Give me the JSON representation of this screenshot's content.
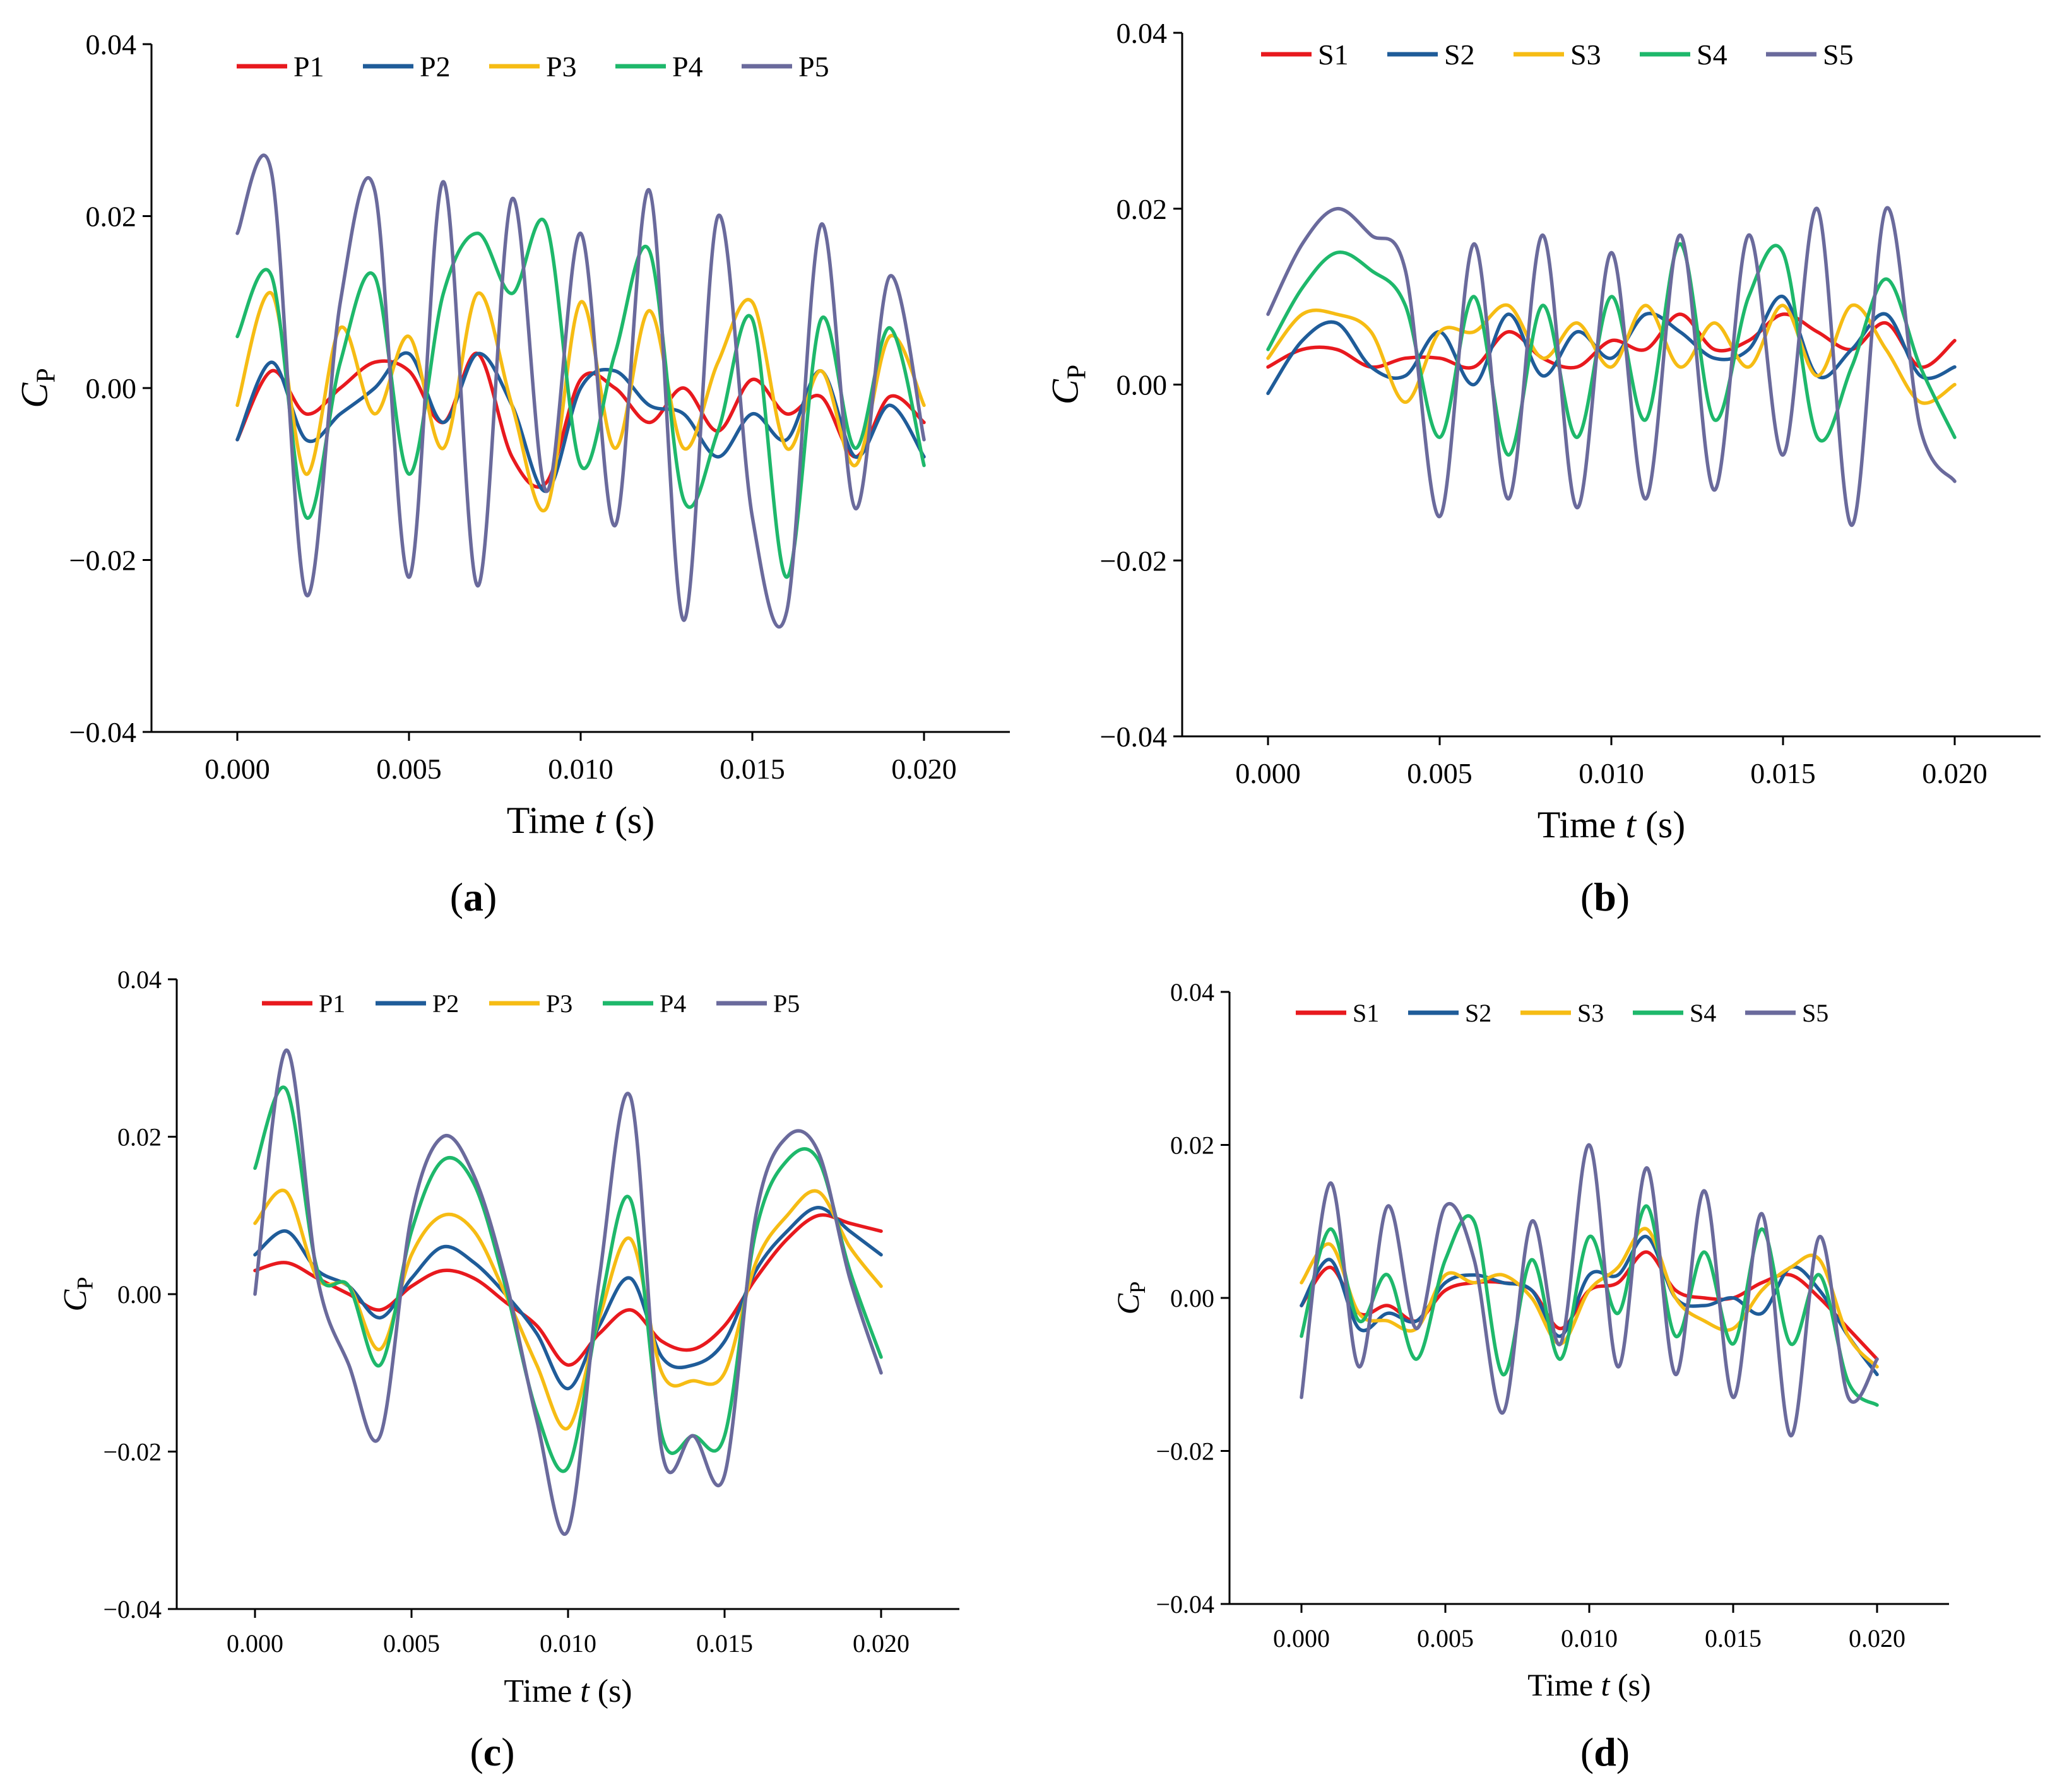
{
  "figure": {
    "captions": [
      "(a)",
      "(b)",
      "(c)",
      "(d)"
    ],
    "caption_letters": [
      "a",
      "b",
      "c",
      "d"
    ]
  },
  "chart_data": [
    {
      "panel": "a",
      "type": "line",
      "xlabel_prefix": "Time ",
      "xlabel_var": "t",
      "xlabel_suffix": " (s)",
      "ylabel_main": "C",
      "ylabel_sub": "P",
      "xlim": [
        -0.0025,
        0.0225
      ],
      "ylim": [
        -0.04,
        0.04
      ],
      "xticks": [
        0.0,
        0.005,
        0.01,
        0.015,
        0.02
      ],
      "xtick_labels": [
        "0.000",
        "0.005",
        "0.010",
        "0.015",
        "0.020"
      ],
      "yticks": [
        -0.04,
        -0.02,
        0.0,
        0.02,
        0.04
      ],
      "ytick_labels": [
        "−0.04",
        "−0.02",
        "0.00",
        "0.02",
        "0.04"
      ],
      "legend_position": "top",
      "x": [
        0.0,
        0.001,
        0.002,
        0.003,
        0.004,
        0.005,
        0.006,
        0.007,
        0.008,
        0.009,
        0.01,
        0.011,
        0.012,
        0.013,
        0.014,
        0.015,
        0.016,
        0.017,
        0.018,
        0.019,
        0.02
      ],
      "series": [
        {
          "name": "P1",
          "color": "#e8191e",
          "values": [
            -0.006,
            0.002,
            -0.003,
            0.0,
            0.003,
            0.002,
            -0.004,
            0.004,
            -0.008,
            -0.011,
            0.001,
            0.0,
            -0.004,
            0.0,
            -0.005,
            0.001,
            -0.003,
            -0.001,
            -0.008,
            -0.001,
            -0.004
          ]
        },
        {
          "name": "P2",
          "color": "#1f5c99",
          "values": [
            -0.006,
            0.003,
            -0.006,
            -0.003,
            0.0,
            0.004,
            -0.004,
            0.004,
            -0.002,
            -0.012,
            0.0,
            0.002,
            -0.002,
            -0.003,
            -0.008,
            -0.003,
            -0.006,
            0.002,
            -0.008,
            -0.002,
            -0.008
          ]
        },
        {
          "name": "P3",
          "color": "#f6bc14",
          "values": [
            -0.002,
            0.011,
            -0.01,
            0.007,
            -0.003,
            0.006,
            -0.007,
            0.011,
            -0.002,
            -0.014,
            0.01,
            -0.007,
            0.009,
            -0.007,
            0.003,
            0.01,
            -0.007,
            0.002,
            -0.009,
            0.006,
            -0.002
          ]
        },
        {
          "name": "P4",
          "color": "#1eb86b",
          "values": [
            0.006,
            0.013,
            -0.015,
            0.003,
            0.013,
            -0.01,
            0.011,
            0.018,
            0.011,
            0.019,
            -0.009,
            0.004,
            0.016,
            -0.013,
            -0.005,
            0.008,
            -0.022,
            0.008,
            -0.007,
            0.007,
            -0.009
          ]
        },
        {
          "name": "P5",
          "color": "#6a6a9c",
          "values": [
            0.018,
            0.025,
            -0.024,
            0.01,
            0.023,
            -0.022,
            0.024,
            -0.023,
            0.022,
            -0.012,
            0.018,
            -0.016,
            0.023,
            -0.027,
            0.02,
            -0.015,
            -0.026,
            0.019,
            -0.014,
            0.013,
            -0.006
          ]
        }
      ]
    },
    {
      "panel": "b",
      "type": "line",
      "xlabel_prefix": "Time ",
      "xlabel_var": "t",
      "xlabel_suffix": " (s)",
      "ylabel_main": "C",
      "ylabel_sub": "P",
      "xlim": [
        -0.0025,
        0.0225
      ],
      "ylim": [
        -0.04,
        0.04
      ],
      "xticks": [
        0.0,
        0.005,
        0.01,
        0.015,
        0.02
      ],
      "xtick_labels": [
        "0.000",
        "0.005",
        "0.010",
        "0.015",
        "0.020"
      ],
      "yticks": [
        -0.04,
        -0.02,
        0.0,
        0.02,
        0.04
      ],
      "ytick_labels": [
        "−0.04",
        "−0.02",
        "0.00",
        "0.02",
        "0.04"
      ],
      "legend_position": "top",
      "x": [
        0.0,
        0.001,
        0.002,
        0.003,
        0.004,
        0.005,
        0.006,
        0.007,
        0.008,
        0.009,
        0.01,
        0.011,
        0.012,
        0.013,
        0.014,
        0.015,
        0.016,
        0.017,
        0.018,
        0.019,
        0.02
      ],
      "series": [
        {
          "name": "S1",
          "color": "#e8191e",
          "values": [
            0.002,
            0.004,
            0.004,
            0.002,
            0.003,
            0.003,
            0.002,
            0.006,
            0.003,
            0.002,
            0.005,
            0.004,
            0.008,
            0.004,
            0.005,
            0.008,
            0.006,
            0.004,
            0.007,
            0.002,
            0.005
          ]
        },
        {
          "name": "S2",
          "color": "#1f5c99",
          "values": [
            -0.001,
            0.005,
            0.007,
            0.002,
            0.001,
            0.006,
            0.0,
            0.008,
            0.001,
            0.006,
            0.003,
            0.008,
            0.006,
            0.003,
            0.004,
            0.01,
            0.001,
            0.004,
            0.008,
            0.001,
            0.002
          ]
        },
        {
          "name": "S3",
          "color": "#f6bc14",
          "values": [
            0.003,
            0.008,
            0.008,
            0.006,
            -0.002,
            0.006,
            0.006,
            0.009,
            0.003,
            0.007,
            0.002,
            0.009,
            0.002,
            0.007,
            0.002,
            0.009,
            0.001,
            0.009,
            0.004,
            -0.002,
            0.0
          ]
        },
        {
          "name": "S4",
          "color": "#1eb86b",
          "values": [
            0.004,
            0.011,
            0.015,
            0.013,
            0.009,
            -0.006,
            0.01,
            -0.008,
            0.009,
            -0.006,
            0.01,
            -0.004,
            0.016,
            -0.004,
            0.01,
            0.015,
            -0.006,
            0.002,
            0.012,
            0.002,
            -0.006
          ]
        },
        {
          "name": "S5",
          "color": "#6a6a9c",
          "values": [
            0.008,
            0.016,
            0.02,
            0.017,
            0.013,
            -0.015,
            0.016,
            -0.013,
            0.017,
            -0.014,
            0.015,
            -0.013,
            0.017,
            -0.012,
            0.017,
            -0.008,
            0.02,
            -0.016,
            0.02,
            -0.005,
            -0.011
          ]
        }
      ]
    },
    {
      "panel": "c",
      "type": "line",
      "xlabel_prefix": "Time ",
      "xlabel_var": "t",
      "xlabel_suffix": " (s)",
      "ylabel_main": "C",
      "ylabel_sub": "P",
      "xlim": [
        -0.0025,
        0.0225
      ],
      "ylim": [
        -0.04,
        0.04
      ],
      "xticks": [
        0.0,
        0.005,
        0.01,
        0.015,
        0.02
      ],
      "xtick_labels": [
        "0.000",
        "0.005",
        "0.010",
        "0.015",
        "0.020"
      ],
      "yticks": [
        -0.04,
        -0.02,
        0.0,
        0.02,
        0.04
      ],
      "ytick_labels": [
        "−0.04",
        "−0.02",
        "0.00",
        "0.02",
        "0.04"
      ],
      "legend_position": "top",
      "x": [
        0.0,
        0.001,
        0.002,
        0.003,
        0.004,
        0.005,
        0.006,
        0.007,
        0.008,
        0.009,
        0.01,
        0.011,
        0.012,
        0.013,
        0.014,
        0.015,
        0.016,
        0.017,
        0.018,
        0.019,
        0.02
      ],
      "series": [
        {
          "name": "P1",
          "color": "#e8191e",
          "values": [
            0.003,
            0.004,
            0.002,
            0.0,
            -0.002,
            0.001,
            0.003,
            0.002,
            -0.001,
            -0.004,
            -0.009,
            -0.005,
            -0.002,
            -0.006,
            -0.007,
            -0.004,
            0.002,
            0.007,
            0.01,
            0.009,
            0.008
          ]
        },
        {
          "name": "P2",
          "color": "#1f5c99",
          "values": [
            0.005,
            0.008,
            0.003,
            0.001,
            -0.003,
            0.002,
            0.006,
            0.004,
            0.0,
            -0.005,
            -0.012,
            -0.004,
            0.002,
            -0.008,
            -0.009,
            -0.006,
            0.003,
            0.008,
            0.011,
            0.008,
            0.005
          ]
        },
        {
          "name": "P3",
          "color": "#f6bc14",
          "values": [
            0.009,
            0.013,
            0.002,
            0.001,
            -0.007,
            0.005,
            0.01,
            0.008,
            0.0,
            -0.009,
            -0.017,
            -0.003,
            0.007,
            -0.01,
            -0.011,
            -0.01,
            0.004,
            0.01,
            0.013,
            0.006,
            0.001
          ]
        },
        {
          "name": "P4",
          "color": "#1eb86b",
          "values": [
            0.016,
            0.026,
            0.003,
            0.001,
            -0.009,
            0.008,
            0.017,
            0.014,
            0.001,
            -0.015,
            -0.022,
            -0.002,
            0.012,
            -0.018,
            -0.018,
            -0.018,
            0.008,
            0.017,
            0.017,
            0.003,
            -0.008
          ]
        },
        {
          "name": "P5",
          "color": "#6a6a9c",
          "values": [
            0.0,
            0.031,
            0.002,
            -0.009,
            -0.018,
            0.01,
            0.02,
            0.015,
            0.002,
            -0.016,
            -0.03,
            0.002,
            0.025,
            -0.02,
            -0.018,
            -0.023,
            0.01,
            0.02,
            0.018,
            0.002,
            -0.01
          ]
        }
      ]
    },
    {
      "panel": "d",
      "type": "line",
      "xlabel_prefix": "Time ",
      "xlabel_var": "t",
      "xlabel_suffix": " (s)",
      "ylabel_main": "C",
      "ylabel_sub": "P",
      "xlim": [
        -0.0025,
        0.0225
      ],
      "ylim": [
        -0.04,
        0.04
      ],
      "xticks": [
        0.0,
        0.005,
        0.01,
        0.015,
        0.02
      ],
      "xtick_labels": [
        "0.000",
        "0.005",
        "0.010",
        "0.015",
        "0.020"
      ],
      "yticks": [
        -0.04,
        -0.02,
        0.0,
        0.02,
        0.04
      ],
      "ytick_labels": [
        "−0.04",
        "−0.02",
        "0.00",
        "0.02",
        "0.04"
      ],
      "legend_position": "top",
      "x": [
        0.0,
        0.001,
        0.002,
        0.003,
        0.004,
        0.005,
        0.006,
        0.007,
        0.008,
        0.009,
        0.01,
        0.011,
        0.012,
        0.013,
        0.014,
        0.015,
        0.016,
        0.017,
        0.018,
        0.019,
        0.02
      ],
      "series": [
        {
          "name": "S1",
          "color": "#e8191e",
          "values": [
            -0.001,
            0.004,
            -0.002,
            -0.001,
            -0.003,
            0.001,
            0.002,
            0.002,
            0.001,
            -0.004,
            0.001,
            0.002,
            0.006,
            0.001,
            0.0,
            0.0,
            0.002,
            0.003,
            0.0,
            -0.004,
            -0.008
          ]
        },
        {
          "name": "S2",
          "color": "#1f5c99",
          "values": [
            -0.001,
            0.005,
            -0.004,
            -0.002,
            -0.003,
            0.002,
            0.003,
            0.002,
            0.001,
            -0.005,
            0.003,
            0.003,
            0.008,
            0.0,
            -0.001,
            0.0,
            -0.002,
            0.004,
            0.001,
            -0.005,
            -0.01
          ]
        },
        {
          "name": "S3",
          "color": "#f6bc14",
          "values": [
            0.002,
            0.007,
            -0.002,
            -0.003,
            -0.004,
            0.003,
            0.002,
            0.003,
            0.0,
            -0.006,
            0.001,
            0.004,
            0.009,
            0.0,
            -0.003,
            -0.004,
            0.001,
            0.004,
            0.005,
            -0.005,
            -0.009
          ]
        },
        {
          "name": "S4",
          "color": "#1eb86b",
          "values": [
            -0.005,
            0.009,
            -0.003,
            0.003,
            -0.008,
            0.005,
            0.01,
            -0.01,
            0.005,
            -0.008,
            0.008,
            -0.002,
            0.012,
            -0.005,
            0.006,
            -0.006,
            0.009,
            -0.006,
            0.003,
            -0.011,
            -0.014
          ]
        },
        {
          "name": "S5",
          "color": "#6a6a9c",
          "values": [
            -0.013,
            0.015,
            -0.009,
            0.012,
            -0.004,
            0.012,
            0.005,
            -0.015,
            0.01,
            -0.006,
            0.02,
            -0.009,
            0.017,
            -0.01,
            0.014,
            -0.013,
            0.011,
            -0.018,
            0.008,
            -0.013,
            -0.008
          ]
        }
      ]
    }
  ]
}
